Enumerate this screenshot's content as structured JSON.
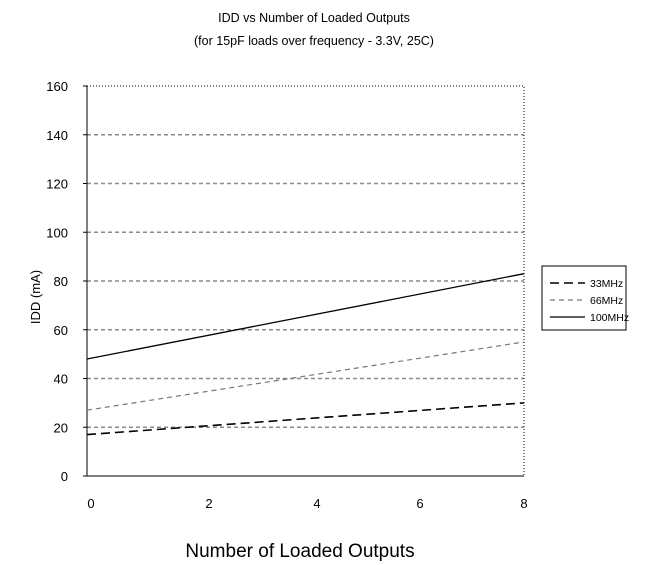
{
  "chart_data": {
    "type": "line",
    "title": "IDD vs Number of Loaded Outputs",
    "subtitle": "(for 15pF loads over frequency - 3.3V, 25C)",
    "xlabel": "Number of Loaded Outputs",
    "ylabel": "IDD (mA)",
    "x": [
      0,
      8
    ],
    "xticks": [
      "0",
      "2",
      "4",
      "6",
      "8"
    ],
    "yticks": [
      "0",
      "20",
      "40",
      "60",
      "80",
      "100",
      "120",
      "140",
      "160"
    ],
    "xlim": [
      0,
      8
    ],
    "ylim": [
      0,
      160
    ],
    "grid": "horizontal dashed",
    "legend_position": "right",
    "series": [
      {
        "name": "33MHz",
        "values": [
          17,
          30
        ],
        "style": "dashed",
        "color": "#000000"
      },
      {
        "name": "66MHz",
        "values": [
          27,
          55
        ],
        "style": "dashed-light",
        "color": "#777777"
      },
      {
        "name": "100MHz",
        "values": [
          48,
          83
        ],
        "style": "solid",
        "color": "#000000"
      }
    ]
  }
}
